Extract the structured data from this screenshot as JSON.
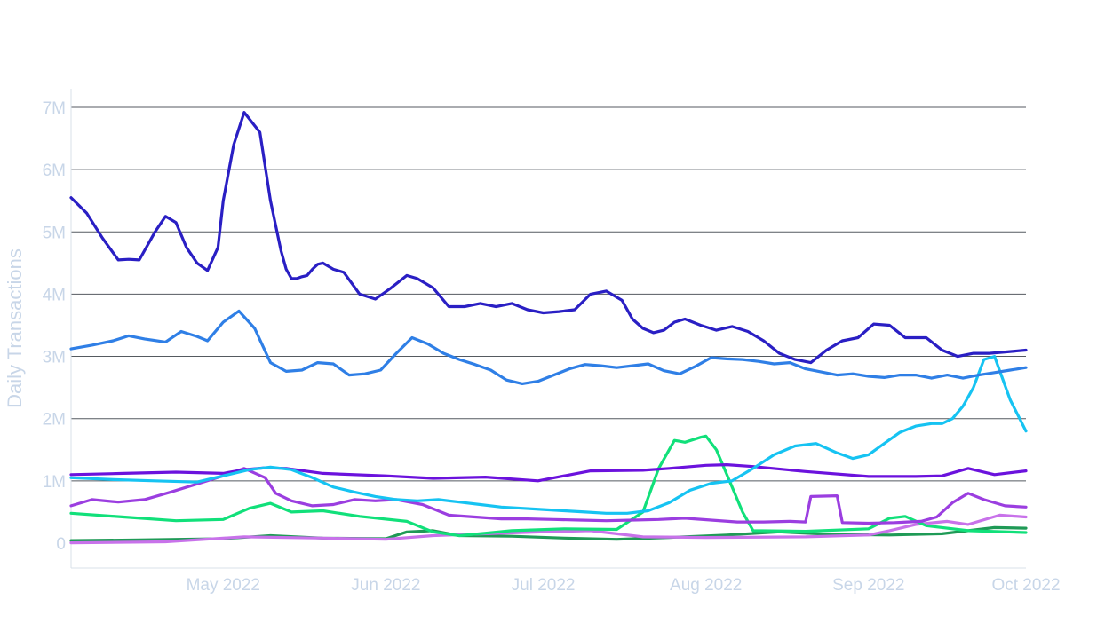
{
  "chart_data": {
    "type": "line",
    "title": "",
    "xlabel": "",
    "ylabel": "Daily Transactions",
    "x_range": [
      "2022-04-02",
      "2022-10-01"
    ],
    "ylim": [
      -400000,
      7300000
    ],
    "y_ticks": [
      {
        "value": 0,
        "label": "0"
      },
      {
        "value": 1000000,
        "label": "1M"
      },
      {
        "value": 2000000,
        "label": "2M"
      },
      {
        "value": 3000000,
        "label": "3M"
      },
      {
        "value": 4000000,
        "label": "4M"
      },
      {
        "value": 5000000,
        "label": "5M"
      },
      {
        "value": 6000000,
        "label": "6M"
      },
      {
        "value": 7000000,
        "label": "7M"
      }
    ],
    "x_ticks": [
      {
        "value": "2022-05-01",
        "label": "May 2022"
      },
      {
        "value": "2022-06-01",
        "label": "Jun 2022"
      },
      {
        "value": "2022-07-01",
        "label": "Jul 2022"
      },
      {
        "value": "2022-08-01",
        "label": "Aug 2022"
      },
      {
        "value": "2022-09-01",
        "label": "Sep 2022"
      },
      {
        "value": "2022-10-01",
        "label": "Oct 2022"
      }
    ],
    "grid": true,
    "legend": "none",
    "series": [
      {
        "color": "#2a1fc4",
        "x": [
          "2022-04-02",
          "2022-04-05",
          "2022-04-08",
          "2022-04-11",
          "2022-04-13",
          "2022-04-15",
          "2022-04-18",
          "2022-04-20",
          "2022-04-22",
          "2022-04-24",
          "2022-04-26",
          "2022-04-28",
          "2022-04-30",
          "2022-05-01",
          "2022-05-03",
          "2022-05-05",
          "2022-05-08",
          "2022-05-10",
          "2022-05-12",
          "2022-05-13",
          "2022-05-14",
          "2022-05-15",
          "2022-05-16",
          "2022-05-17",
          "2022-05-18",
          "2022-05-19",
          "2022-05-20",
          "2022-05-21",
          "2022-05-22",
          "2022-05-24",
          "2022-05-27",
          "2022-05-30",
          "2022-06-02",
          "2022-06-05",
          "2022-06-07",
          "2022-06-10",
          "2022-06-13",
          "2022-06-16",
          "2022-06-19",
          "2022-06-22",
          "2022-06-25",
          "2022-06-28",
          "2022-07-01",
          "2022-07-04",
          "2022-07-07",
          "2022-07-10",
          "2022-07-13",
          "2022-07-16",
          "2022-07-18",
          "2022-07-20",
          "2022-07-22",
          "2022-07-24",
          "2022-07-26",
          "2022-07-28",
          "2022-07-31",
          "2022-08-03",
          "2022-08-06",
          "2022-08-09",
          "2022-08-12",
          "2022-08-15",
          "2022-08-18",
          "2022-08-21",
          "2022-08-24",
          "2022-08-27",
          "2022-08-30",
          "2022-09-02",
          "2022-09-05",
          "2022-09-08",
          "2022-09-10",
          "2022-09-12",
          "2022-09-15",
          "2022-09-18",
          "2022-09-21",
          "2022-09-24",
          "2022-09-27",
          "2022-10-01"
        ],
        "y": [
          5550000,
          5300000,
          4900000,
          4550000,
          4560000,
          4550000,
          5000000,
          5250000,
          5150000,
          4750000,
          4500000,
          4380000,
          4750000,
          5500000,
          6400000,
          6920000,
          6600000,
          5500000,
          4700000,
          4400000,
          4250000,
          4250000,
          4280000,
          4300000,
          4400000,
          4480000,
          4500000,
          4450000,
          4400000,
          4350000,
          4000000,
          3920000,
          4100000,
          4300000,
          4250000,
          4100000,
          3800000,
          3800000,
          3850000,
          3800000,
          3850000,
          3750000,
          3700000,
          3720000,
          3750000,
          4000000,
          4050000,
          3900000,
          3600000,
          3450000,
          3380000,
          3420000,
          3550000,
          3600000,
          3500000,
          3420000,
          3480000,
          3400000,
          3250000,
          3050000,
          2950000,
          2900000,
          3100000,
          3250000,
          3300000,
          3520000,
          3500000,
          3300000,
          3300000,
          3300000,
          3100000,
          3000000,
          3050000,
          3050000,
          3070000,
          3100000
        ]
      },
      {
        "color": "#2f7fe6",
        "x": [
          "2022-04-02",
          "2022-04-06",
          "2022-04-10",
          "2022-04-13",
          "2022-04-16",
          "2022-04-20",
          "2022-04-23",
          "2022-04-26",
          "2022-04-28",
          "2022-05-01",
          "2022-05-04",
          "2022-05-07",
          "2022-05-10",
          "2022-05-13",
          "2022-05-16",
          "2022-05-19",
          "2022-05-22",
          "2022-05-25",
          "2022-05-28",
          "2022-05-31",
          "2022-06-03",
          "2022-06-06",
          "2022-06-09",
          "2022-06-12",
          "2022-06-15",
          "2022-06-18",
          "2022-06-21",
          "2022-06-24",
          "2022-06-27",
          "2022-06-30",
          "2022-07-03",
          "2022-07-06",
          "2022-07-09",
          "2022-07-12",
          "2022-07-15",
          "2022-07-18",
          "2022-07-21",
          "2022-07-24",
          "2022-07-27",
          "2022-07-30",
          "2022-08-02",
          "2022-08-05",
          "2022-08-08",
          "2022-08-11",
          "2022-08-14",
          "2022-08-17",
          "2022-08-20",
          "2022-08-23",
          "2022-08-26",
          "2022-08-29",
          "2022-09-01",
          "2022-09-04",
          "2022-09-07",
          "2022-09-10",
          "2022-09-13",
          "2022-09-16",
          "2022-09-19",
          "2022-09-22",
          "2022-09-25",
          "2022-09-28",
          "2022-10-01"
        ],
        "y": [
          3120000,
          3180000,
          3250000,
          3330000,
          3280000,
          3230000,
          3400000,
          3320000,
          3250000,
          3550000,
          3730000,
          3450000,
          2900000,
          2760000,
          2780000,
          2900000,
          2880000,
          2700000,
          2720000,
          2780000,
          3050000,
          3300000,
          3200000,
          3050000,
          2950000,
          2870000,
          2780000,
          2620000,
          2560000,
          2600000,
          2700000,
          2800000,
          2870000,
          2850000,
          2820000,
          2850000,
          2880000,
          2770000,
          2720000,
          2840000,
          2980000,
          2960000,
          2950000,
          2920000,
          2880000,
          2900000,
          2800000,
          2750000,
          2700000,
          2720000,
          2680000,
          2660000,
          2700000,
          2700000,
          2650000,
          2700000,
          2650000,
          2700000,
          2740000,
          2780000,
          2820000
        ]
      },
      {
        "color": "#16c3f2",
        "x": [
          "2022-04-02",
          "2022-04-10",
          "2022-04-18",
          "2022-04-26",
          "2022-05-02",
          "2022-05-06",
          "2022-05-10",
          "2022-05-14",
          "2022-05-18",
          "2022-05-22",
          "2022-05-26",
          "2022-05-30",
          "2022-06-03",
          "2022-06-07",
          "2022-06-11",
          "2022-06-15",
          "2022-06-19",
          "2022-06-23",
          "2022-06-27",
          "2022-07-01",
          "2022-07-05",
          "2022-07-09",
          "2022-07-13",
          "2022-07-17",
          "2022-07-21",
          "2022-07-25",
          "2022-07-29",
          "2022-08-02",
          "2022-08-06",
          "2022-08-10",
          "2022-08-14",
          "2022-08-18",
          "2022-08-22",
          "2022-08-26",
          "2022-08-29",
          "2022-09-01",
          "2022-09-04",
          "2022-09-07",
          "2022-09-10",
          "2022-09-13",
          "2022-09-15",
          "2022-09-17",
          "2022-09-19",
          "2022-09-21",
          "2022-09-23",
          "2022-09-25",
          "2022-09-28",
          "2022-10-01"
        ],
        "y": [
          1050000,
          1020000,
          1000000,
          980000,
          1100000,
          1180000,
          1220000,
          1180000,
          1050000,
          900000,
          820000,
          750000,
          700000,
          680000,
          700000,
          660000,
          620000,
          580000,
          560000,
          540000,
          520000,
          500000,
          480000,
          480000,
          520000,
          650000,
          850000,
          960000,
          1000000,
          1200000,
          1420000,
          1560000,
          1600000,
          1450000,
          1360000,
          1420000,
          1600000,
          1780000,
          1880000,
          1920000,
          1920000,
          2000000,
          2200000,
          2500000,
          2950000,
          3000000,
          2300000,
          1800000
        ]
      },
      {
        "color": "#6b12dd",
        "x": [
          "2022-04-02",
          "2022-04-12",
          "2022-04-22",
          "2022-05-01",
          "2022-05-05",
          "2022-05-09",
          "2022-05-13",
          "2022-05-20",
          "2022-06-01",
          "2022-06-10",
          "2022-06-20",
          "2022-06-30",
          "2022-07-10",
          "2022-07-20",
          "2022-07-25",
          "2022-08-01",
          "2022-08-05",
          "2022-08-10",
          "2022-08-20",
          "2022-09-01",
          "2022-09-10",
          "2022-09-15",
          "2022-09-20",
          "2022-09-25",
          "2022-10-01"
        ],
        "y": [
          1100000,
          1120000,
          1140000,
          1120000,
          1180000,
          1210000,
          1200000,
          1120000,
          1080000,
          1040000,
          1060000,
          1000000,
          1160000,
          1170000,
          1200000,
          1250000,
          1260000,
          1230000,
          1150000,
          1070000,
          1070000,
          1080000,
          1200000,
          1100000,
          1160000
        ]
      },
      {
        "color": "#9b3ee0",
        "x": [
          "2022-04-02",
          "2022-04-06",
          "2022-04-11",
          "2022-04-16",
          "2022-04-21",
          "2022-04-26",
          "2022-05-01",
          "2022-05-05",
          "2022-05-09",
          "2022-05-11",
          "2022-05-14",
          "2022-05-18",
          "2022-05-22",
          "2022-05-26",
          "2022-05-30",
          "2022-06-03",
          "2022-06-08",
          "2022-06-13",
          "2022-06-18",
          "2022-06-23",
          "2022-06-28",
          "2022-07-03",
          "2022-07-08",
          "2022-07-13",
          "2022-07-18",
          "2022-07-23",
          "2022-07-28",
          "2022-08-02",
          "2022-08-07",
          "2022-08-12",
          "2022-08-17",
          "2022-08-20",
          "2022-08-21",
          "2022-08-26",
          "2022-08-27",
          "2022-09-01",
          "2022-09-06",
          "2022-09-11",
          "2022-09-14",
          "2022-09-17",
          "2022-09-20",
          "2022-09-23",
          "2022-09-27",
          "2022-10-01"
        ],
        "y": [
          600000,
          700000,
          660000,
          700000,
          820000,
          950000,
          1080000,
          1200000,
          1050000,
          800000,
          680000,
          600000,
          620000,
          700000,
          680000,
          700000,
          620000,
          450000,
          420000,
          390000,
          390000,
          380000,
          370000,
          360000,
          370000,
          380000,
          400000,
          370000,
          340000,
          340000,
          350000,
          340000,
          750000,
          760000,
          330000,
          320000,
          330000,
          350000,
          420000,
          650000,
          800000,
          700000,
          600000,
          580000
        ]
      },
      {
        "color": "#c872ea",
        "x": [
          "2022-04-02",
          "2022-04-20",
          "2022-05-05",
          "2022-05-20",
          "2022-06-01",
          "2022-06-10",
          "2022-06-20",
          "2022-07-01",
          "2022-07-10",
          "2022-07-20",
          "2022-08-01",
          "2022-08-20",
          "2022-09-01",
          "2022-09-05",
          "2022-09-10",
          "2022-09-16",
          "2022-09-20",
          "2022-09-26",
          "2022-10-01"
        ],
        "y": [
          5000,
          20000,
          100000,
          80000,
          60000,
          120000,
          150000,
          180000,
          200000,
          100000,
          90000,
          100000,
          130000,
          200000,
          300000,
          350000,
          300000,
          450000,
          420000
        ]
      },
      {
        "color": "#11e07a",
        "x": [
          "2022-04-02",
          "2022-04-12",
          "2022-04-22",
          "2022-05-01",
          "2022-05-06",
          "2022-05-10",
          "2022-05-14",
          "2022-05-20",
          "2022-05-27",
          "2022-06-05",
          "2022-06-10",
          "2022-06-15",
          "2022-06-20",
          "2022-06-25",
          "2022-07-05",
          "2022-07-15",
          "2022-07-20",
          "2022-07-23",
          "2022-07-26",
          "2022-07-28",
          "2022-07-31",
          "2022-08-01",
          "2022-08-03",
          "2022-08-06",
          "2022-08-08",
          "2022-08-10",
          "2022-08-20",
          "2022-09-01",
          "2022-09-05",
          "2022-09-08",
          "2022-09-12",
          "2022-09-20",
          "2022-10-01"
        ],
        "y": [
          480000,
          420000,
          360000,
          380000,
          560000,
          640000,
          500000,
          520000,
          430000,
          350000,
          180000,
          120000,
          160000,
          200000,
          230000,
          220000,
          500000,
          1200000,
          1650000,
          1620000,
          1700000,
          1720000,
          1500000,
          900000,
          500000,
          200000,
          190000,
          230000,
          400000,
          430000,
          280000,
          200000,
          170000
        ]
      },
      {
        "color": "#1f9a56",
        "x": [
          "2022-04-02",
          "2022-04-15",
          "2022-05-01",
          "2022-05-10",
          "2022-05-20",
          "2022-06-01",
          "2022-06-05",
          "2022-06-10",
          "2022-06-15",
          "2022-06-25",
          "2022-07-05",
          "2022-07-15",
          "2022-07-25",
          "2022-08-05",
          "2022-08-15",
          "2022-08-25",
          "2022-09-05",
          "2022-09-15",
          "2022-09-20",
          "2022-09-25",
          "2022-10-01"
        ],
        "y": [
          40000,
          50000,
          70000,
          120000,
          80000,
          70000,
          180000,
          200000,
          120000,
          110000,
          80000,
          60000,
          90000,
          130000,
          180000,
          140000,
          130000,
          150000,
          200000,
          250000,
          240000
        ]
      }
    ]
  }
}
